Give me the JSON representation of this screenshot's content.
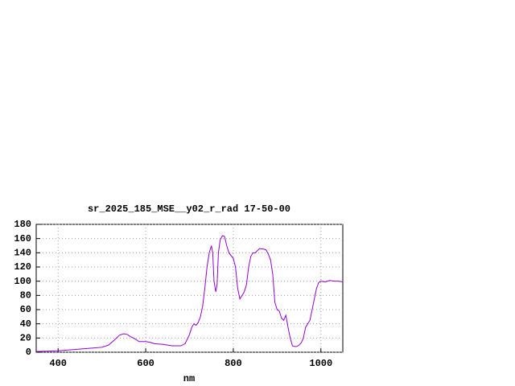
{
  "chart_data": {
    "type": "line",
    "title": "sr_2025_185_MSE__y02_r_rad 17-50-00",
    "x_label": "nm",
    "x": [
      350,
      400,
      420,
      440,
      460,
      480,
      500,
      515,
      530,
      540,
      550,
      558,
      565,
      575,
      585,
      600,
      610,
      620,
      640,
      660,
      680,
      690,
      700,
      705,
      710,
      715,
      720,
      725,
      730,
      735,
      740,
      745,
      750,
      753,
      756,
      760,
      763,
      766,
      770,
      775,
      780,
      785,
      790,
      800,
      805,
      810,
      815,
      820,
      825,
      830,
      835,
      840,
      845,
      850,
      855,
      860,
      870,
      875,
      880,
      885,
      890,
      895,
      900,
      905,
      910,
      915,
      920,
      925,
      930,
      935,
      940,
      945,
      950,
      955,
      960,
      965,
      970,
      975,
      980,
      985,
      990,
      995,
      1000,
      1010,
      1020,
      1030,
      1040,
      1050
    ],
    "series": [
      {
        "color": "#9400d3",
        "values": [
          1,
          2,
          3,
          4,
          5,
          6,
          7,
          10,
          18,
          24,
          26,
          25,
          22,
          19,
          15,
          15,
          14,
          12,
          11,
          9,
          9,
          12,
          25,
          35,
          40,
          38,
          42,
          50,
          65,
          90,
          120,
          140,
          150,
          140,
          100,
          85,
          95,
          140,
          158,
          164,
          163,
          150,
          140,
          132,
          120,
          90,
          75,
          80,
          85,
          95,
          120,
          135,
          140,
          140,
          143,
          146,
          145,
          144,
          138,
          130,
          110,
          70,
          60,
          58,
          48,
          45,
          52,
          35,
          20,
          9,
          8,
          8,
          10,
          13,
          20,
          35,
          40,
          45,
          60,
          75,
          90,
          98,
          100,
          99,
          101,
          100,
          100,
          99
        ]
      }
    ],
    "xlim": [
      350,
      1050
    ],
    "ylim": [
      0,
      180
    ],
    "xticks": [
      400,
      600,
      800,
      1000
    ],
    "yticks": [
      0,
      20,
      40,
      60,
      80,
      100,
      120,
      140,
      160,
      180
    ],
    "grid": true
  }
}
